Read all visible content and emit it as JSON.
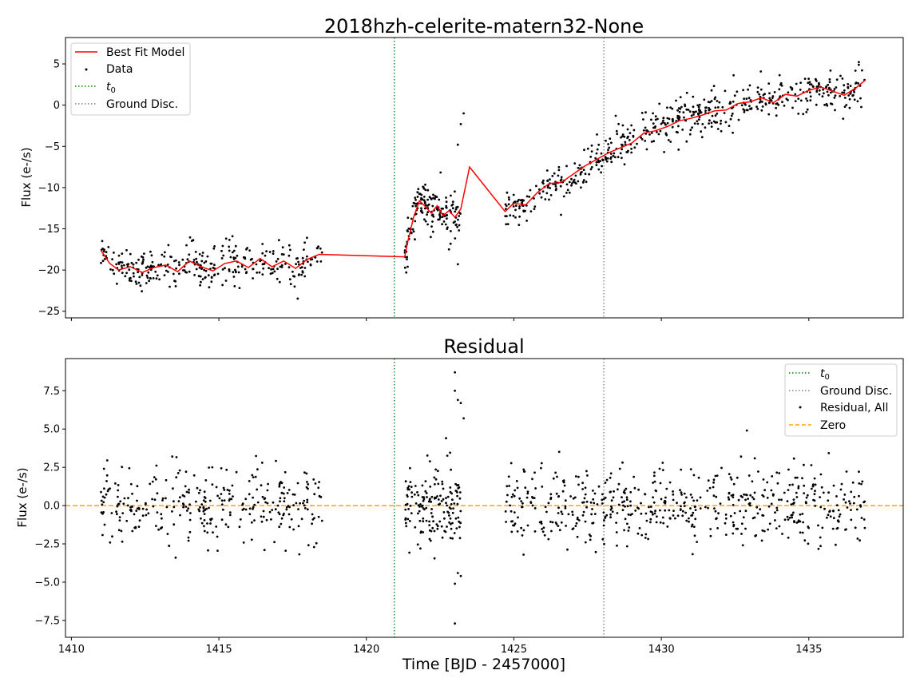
{
  "colors": {
    "model": "#ff0000",
    "data": "#000000",
    "t0": "#008000",
    "ground": "#808080",
    "zero": "#ffa500"
  },
  "chart_data": [
    {
      "type": "scatter",
      "title": "2018hzh-celerite-matern32-None",
      "xlabel": "",
      "ylabel": "Flux (e-/s)",
      "xlim": [
        1409.8,
        1438.2
      ],
      "ylim": [
        -25.8,
        8.2
      ],
      "x_ticks": [
        1410,
        1415,
        1420,
        1425,
        1430,
        1435
      ],
      "y_ticks": [
        5,
        0,
        -5,
        -10,
        -15,
        -20,
        -25
      ],
      "y_tick_labels": [
        "5",
        "0",
        "−5",
        "−10",
        "−15",
        "−20",
        "−25"
      ],
      "legend": {
        "placement": "top-left",
        "entries": [
          "Best Fit Model",
          "Data",
          "t0",
          "Ground Disc."
        ]
      },
      "vlines": [
        {
          "name": "t0",
          "x": 1420.95
        },
        {
          "name": "Ground Disc.",
          "x": 1428.05
        }
      ],
      "segments": [
        {
          "x_start": 1411.0,
          "x_end": 1418.5,
          "y_start": -19.5,
          "y_end": -19.5
        },
        {
          "x_start": 1421.3,
          "x_end": 1423.2,
          "y_start": -13.0,
          "y_end": -13.0
        },
        {
          "x_start": 1424.7,
          "x_end": 1436.9,
          "y_start": -12.0,
          "y_end": 2.5
        }
      ],
      "model": {
        "x": [
          1411.0,
          1411.3,
          1411.6,
          1412.0,
          1412.4,
          1412.8,
          1413.2,
          1413.6,
          1414.0,
          1414.4,
          1414.8,
          1415.2,
          1415.6,
          1416.0,
          1416.4,
          1416.8,
          1417.2,
          1417.6,
          1418.0,
          1418.4,
          1421.3,
          1421.4,
          1421.6,
          1421.8,
          1422.0,
          1422.2,
          1422.4,
          1422.6,
          1422.8,
          1423.0,
          1423.2,
          1423.5,
          1424.7,
          1425.0,
          1425.4,
          1425.8,
          1426.2,
          1426.6,
          1427.0,
          1427.4,
          1427.8,
          1428.2,
          1428.6,
          1429.0,
          1429.4,
          1429.8,
          1430.2,
          1430.6,
          1431.0,
          1431.4,
          1431.8,
          1432.2,
          1432.6,
          1433.0,
          1433.4,
          1433.8,
          1434.2,
          1434.6,
          1435.0,
          1435.4,
          1435.8,
          1436.2,
          1436.6,
          1436.9
        ],
        "y": [
          -17.6,
          -19.2,
          -20.0,
          -19.6,
          -20.3,
          -19.7,
          -19.4,
          -20.2,
          -18.9,
          -19.6,
          -20.1,
          -19.2,
          -18.9,
          -19.7,
          -18.6,
          -19.6,
          -18.9,
          -19.8,
          -18.7,
          -18.1,
          -18.4,
          -16.6,
          -13.6,
          -11.6,
          -12.3,
          -13.1,
          -12.2,
          -13.4,
          -12.8,
          -13.6,
          -12.6,
          -7.5,
          -12.9,
          -11.9,
          -12.1,
          -10.6,
          -9.5,
          -9.4,
          -8.4,
          -7.4,
          -6.6,
          -5.8,
          -5.2,
          -4.6,
          -3.4,
          -3.1,
          -2.6,
          -1.9,
          -1.6,
          -1.2,
          -0.7,
          -0.6,
          0.2,
          0.4,
          0.9,
          0.3,
          1.3,
          1.1,
          1.8,
          2.2,
          1.7,
          1.2,
          2.1,
          3.0
        ]
      },
      "data_points": {
        "noise_sigma": 1.25,
        "count_per_segment": [
          320,
          160,
          560
        ]
      }
    },
    {
      "type": "scatter",
      "title": "Residual",
      "xlabel": "Time [BJD - 2457000]",
      "ylabel": "Flux (e-/s)",
      "xlim": [
        1409.8,
        1438.2
      ],
      "ylim": [
        -8.6,
        9.6
      ],
      "x_ticks": [
        1410,
        1415,
        1420,
        1425,
        1430,
        1435
      ],
      "y_ticks": [
        7.5,
        5.0,
        2.5,
        0.0,
        -2.5,
        -5.0,
        -7.5
      ],
      "y_tick_labels": [
        "7.5",
        "5.0",
        "2.5",
        "0.0",
        "−2.5",
        "−5.0",
        "−7.5"
      ],
      "legend": {
        "placement": "top-right",
        "entries": [
          "t0",
          "Ground Disc.",
          "Residual, All",
          "Zero"
        ]
      },
      "vlines": [
        {
          "name": "t0",
          "x": 1420.95
        },
        {
          "name": "Ground Disc.",
          "x": 1428.05
        }
      ],
      "hline": {
        "name": "Zero",
        "y": 0.0
      },
      "outliers": {
        "x": [
          1423.0,
          1423.0,
          1423.1,
          1423.2,
          1423.3,
          1422.7,
          1423.0,
          1423.1,
          1423.2,
          1423.0,
          1432.9
        ],
        "y": [
          8.7,
          7.5,
          6.9,
          6.7,
          5.7,
          4.4,
          -7.7,
          -4.4,
          -4.6,
          -5.1,
          4.9
        ]
      },
      "data_points": {
        "noise_sigma": 1.25,
        "count_per_segment": [
          320,
          160,
          560
        ]
      }
    }
  ],
  "legend_labels": {
    "model": "Best Fit Model",
    "data": "Data",
    "t0": "t",
    "t0_sub": "0",
    "ground": "Ground Disc.",
    "residual": "Residual, All",
    "zero": "Zero"
  }
}
